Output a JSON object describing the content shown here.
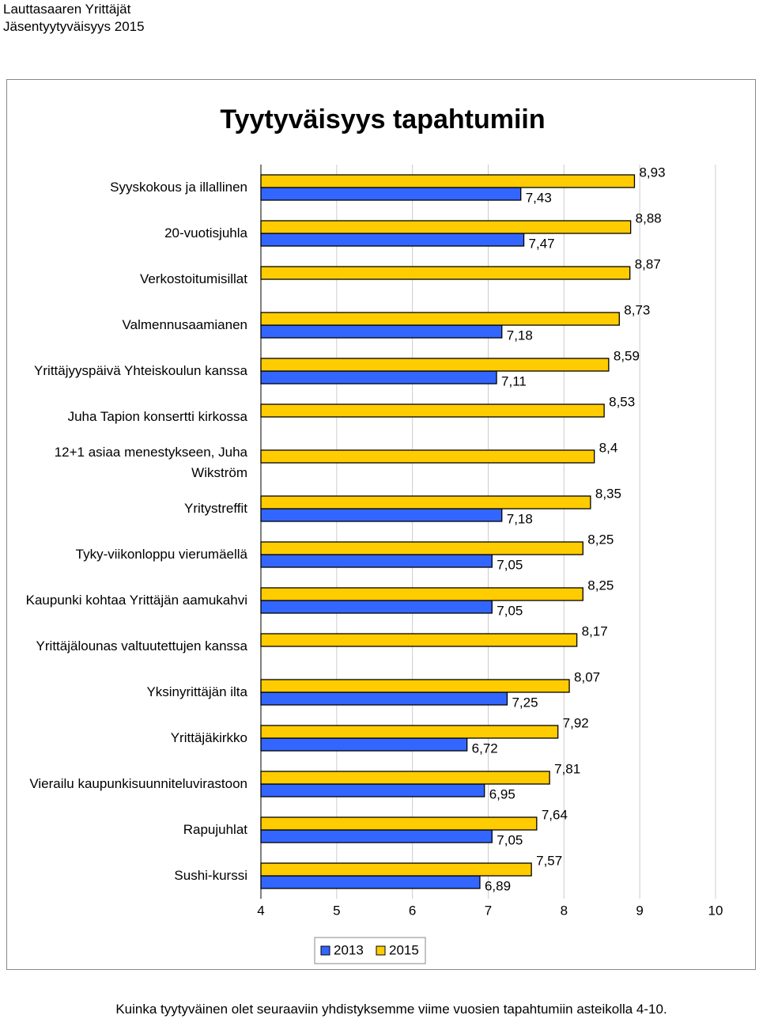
{
  "header": {
    "organization": "Lauttasaaren Yrittäjät",
    "subtitle": "Jäsentyytyväisyys 2015"
  },
  "chart_data": {
    "type": "bar",
    "orientation": "horizontal",
    "title": "Tyytyväisyys tapahtumiin",
    "categories": [
      "Syyskokous ja illallinen",
      "20-vuotisjuhla",
      "Verkostoitumisillat",
      "Valmennusaamianen",
      "Yrittäjyyspäivä Yhteiskoulun kanssa",
      "Juha Tapion konsertti kirkossa",
      "12+1 asiaa menestykseen, Juha Wikström",
      "Yritystreffit",
      "Tyky-viikonloppu vierumäellä",
      "Kaupunki kohtaa Yrittäjän aamukahvi",
      "Yrittäjälounas valtuutettujen kanssa",
      "Yksinyrittäjän ilta",
      "Yrittäjäkirkko",
      "Vierailu kaupunkisuunniteluvirastoon",
      "Rapujuhlat",
      "Sushi-kurssi"
    ],
    "series": [
      {
        "name": "2013",
        "color": "#3366ff",
        "values": [
          7.43,
          7.47,
          null,
          7.18,
          7.11,
          null,
          null,
          7.18,
          7.05,
          7.05,
          null,
          7.25,
          6.72,
          6.95,
          7.05,
          6.89
        ],
        "value_labels": [
          "7,43",
          "7,47",
          null,
          "7,18",
          "7,11",
          null,
          null,
          "7,18",
          "7,05",
          "7,05",
          null,
          "7,25",
          "6,72",
          "6,95",
          "7,05",
          "6,89"
        ]
      },
      {
        "name": "2015",
        "color": "#ffcc00",
        "values": [
          8.93,
          8.88,
          8.87,
          8.73,
          8.59,
          8.53,
          8.4,
          8.35,
          8.25,
          8.25,
          8.17,
          8.07,
          7.92,
          7.81,
          7.64,
          7.57
        ],
        "value_labels": [
          "8,93",
          "8,88",
          "8,87",
          "8,73",
          "8,59",
          "8,53",
          "8,4",
          "8,35",
          "8,25",
          "8,25",
          "8,17",
          "8,07",
          "7,92",
          "7,81",
          "7,64",
          "7,57"
        ]
      }
    ],
    "xlim": [
      4,
      10
    ],
    "xticks": [
      4,
      5,
      6,
      7,
      8,
      9,
      10
    ],
    "grid": true
  },
  "footer": {
    "note": "Kuinka tyytyväinen olet seuraaviin yhdistyksemme viime vuosien tapahtumiin asteikolla 4-10."
  }
}
